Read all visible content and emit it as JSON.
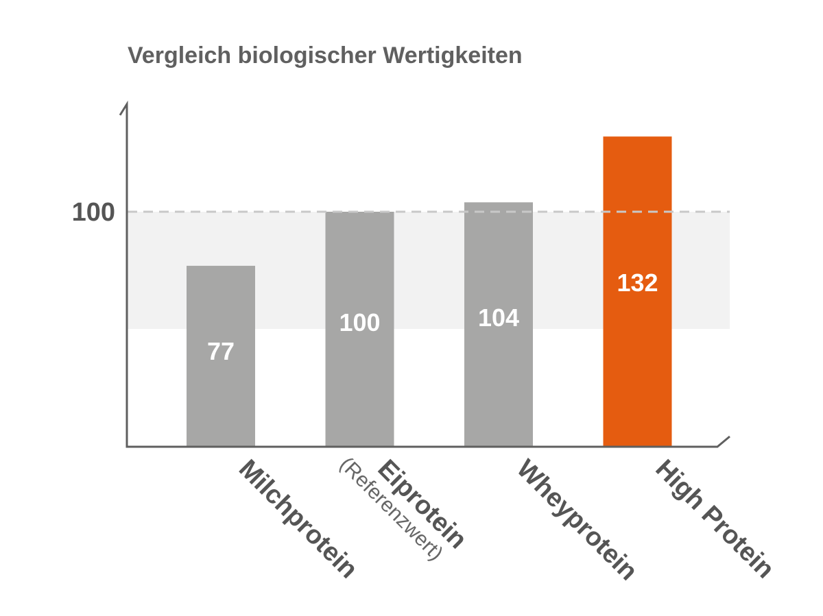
{
  "chart_data": {
    "type": "bar",
    "title": "Vergleich biologischer Wertigkeiten",
    "categories": [
      "Milchprotein",
      "Eiprotein",
      "Wheyprotein",
      "High Protein"
    ],
    "category_notes": [
      "",
      "(Referenzwert)",
      "",
      ""
    ],
    "values": [
      77,
      100,
      104,
      132
    ],
    "reference": {
      "value": 100,
      "label": "100",
      "style": "dashed"
    },
    "highlight_index": 3,
    "colors": {
      "bar": "#a7a7a6",
      "highlight": "#e55c10",
      "axis": "#5f5f5f",
      "band": "#f2f2f2",
      "reference_line": "#c8c8c8"
    },
    "ylim": [
      0,
      150
    ],
    "xlabel": "",
    "ylabel": ""
  }
}
